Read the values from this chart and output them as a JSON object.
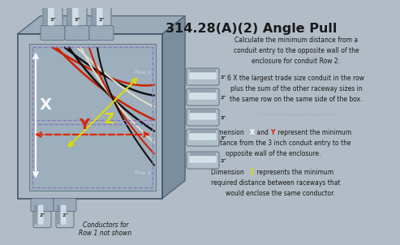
{
  "title": "314.28(A)(2) Angle Pull",
  "bg_color": "#b2bcc6",
  "box_outer_color": "#8a9aaa",
  "box_face_color": "#aab8c4",
  "box_inner_color": "#9fb0be",
  "top_face_color": "#9aacba",
  "right_face_color": "#7a8e9e",
  "wire_red": "#cc2200",
  "wire_black": "#111111",
  "wire_white": "#ddddcc",
  "dim_x_color": "#ffffff",
  "dim_y_color": "#dd2200",
  "dim_z_color": "#dddd00",
  "conduit_body": "#b0bec8",
  "conduit_hi": "#dde8f0",
  "conduit_edge": "#6a7a8a",
  "row_label_color": "#ccddee",
  "dashed_color": "#8877bb",
  "text_dark": "#1a1a1a",
  "text_mid": "#333333",
  "watermark_color": "#9aaabb",
  "right_text1_line1": "Calculate the minimum distance from a",
  "right_text1_line2": "conduit entry to the opposite wall of the",
  "right_text1_line3": "enclosure for conduit Row 2:",
  "right_text2_line1": "6 X the largest trade size conduit in the row",
  "right_text2_line2": "plus the sum of the other raceway sizes in",
  "right_text2_line3": "the same row on the same side of the box.",
  "watermark": "©ElectricalLicenseRenewal.Com",
  "dim_xy_line1a": "Dimension ",
  "dim_xy_X": "X",
  "dim_xy_and": " and ",
  "dim_xy_Y": "Y",
  "dim_xy_line1b": " represent the minimum",
  "dim_xy_line2": "distance from the 3 inch conduit entry to the",
  "dim_xy_line3": "opposite wall of the enclosure.",
  "dim_z_line1a": "Dimension ",
  "dim_z_Z": "Z",
  "dim_z_line1b": " represents the minimum",
  "dim_z_line2": "required distance between raceways that",
  "dim_z_line3": "would enclose the same conductor.",
  "bottom_label": "Conductors for\nRow 1 not shown",
  "top_conduit_labels": [
    "3\"",
    "3\"",
    "2\""
  ],
  "right_conduit_labels": [
    "2\"",
    "2\"",
    "3\"",
    "3\"",
    "2\""
  ],
  "bottom_conduit_labels": [
    "2\"",
    "2\""
  ]
}
